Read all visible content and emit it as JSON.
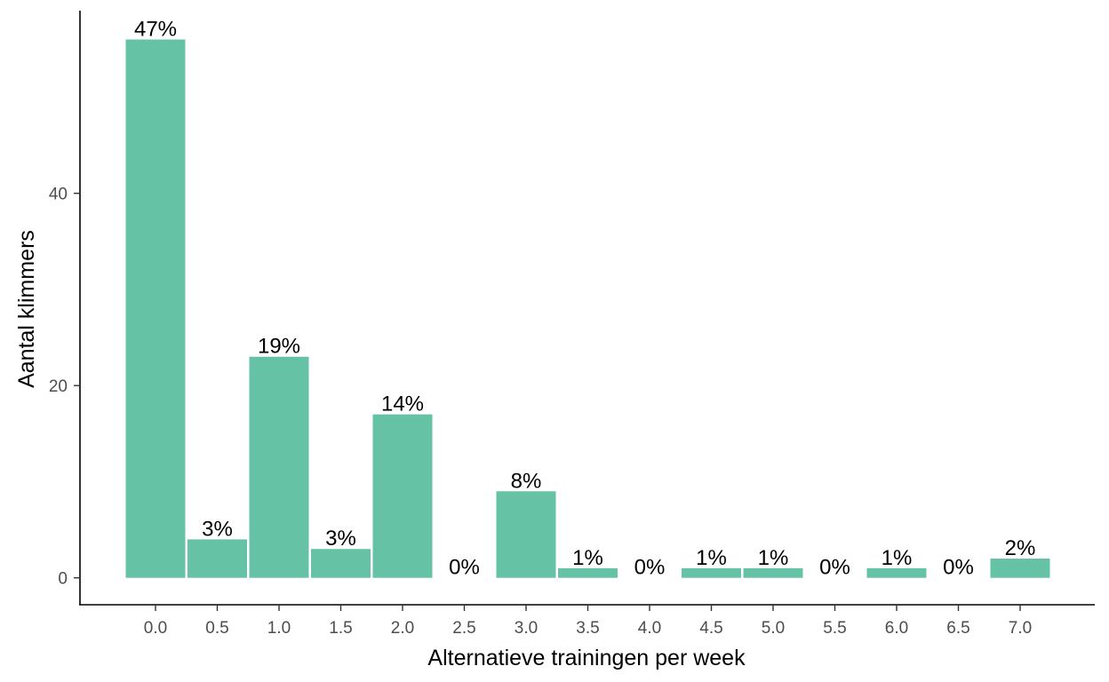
{
  "chart_data": {
    "type": "bar",
    "title": "",
    "xlabel": "Alternatieve trainingen per week",
    "ylabel": "Aantal klimmers",
    "categories": [
      "0.0",
      "0.5",
      "1.0",
      "1.5",
      "2.0",
      "2.5",
      "3.0",
      "3.5",
      "4.0",
      "4.5",
      "5.0",
      "5.5",
      "6.0",
      "6.5",
      "7.0"
    ],
    "values": [
      56,
      4,
      23,
      3,
      17,
      0,
      9,
      1,
      0,
      1,
      1,
      0,
      1,
      0,
      2
    ],
    "data_labels": [
      "47%",
      "3%",
      "19%",
      "3%",
      "14%",
      "0%",
      "8%",
      "1%",
      "0%",
      "1%",
      "1%",
      "0%",
      "1%",
      "0%",
      "2%"
    ],
    "y_ticks": [
      0,
      20,
      40
    ],
    "ylim": [
      -2.8,
      59
    ],
    "grid": false,
    "legend": "none",
    "bar_color": "#66c2a5"
  }
}
